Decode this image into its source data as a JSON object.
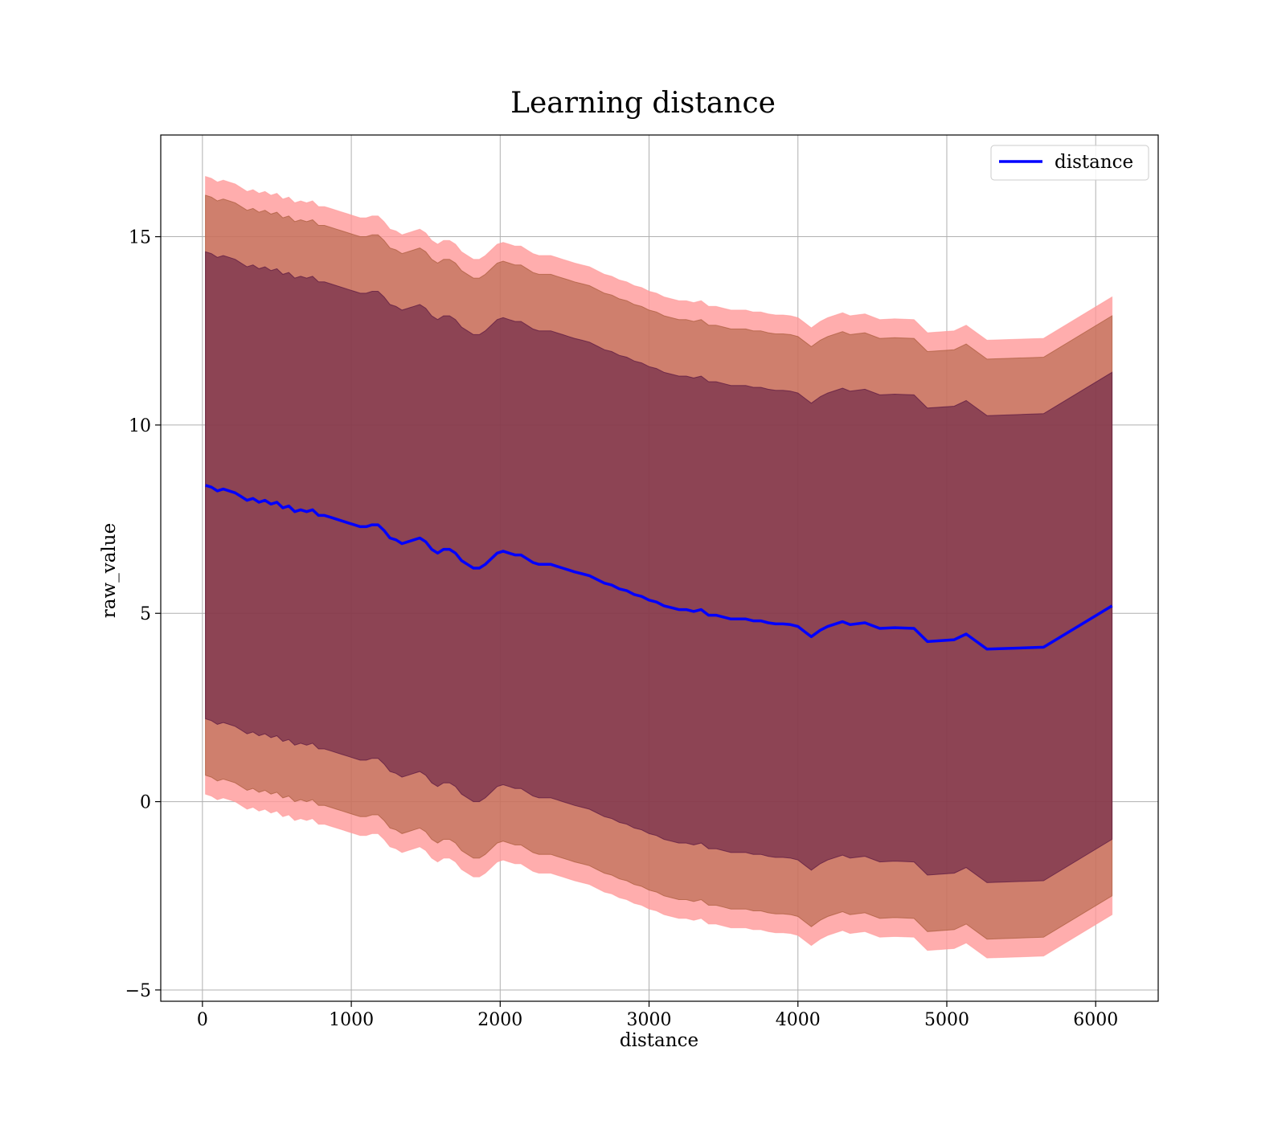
{
  "chart_data": {
    "type": "line",
    "title": "Learning distance",
    "xlabel": "distance",
    "ylabel": "raw_value",
    "xlim": [
      -280,
      6420
    ],
    "ylim": [
      -5.3,
      17.7
    ],
    "xticks": [
      0,
      1000,
      2000,
      3000,
      4000,
      5000,
      6000
    ],
    "yticks": [
      -5,
      0,
      5,
      10,
      15
    ],
    "ytick_labels": [
      "−5",
      "0",
      "5",
      "10",
      "15"
    ],
    "grid": true,
    "legend": {
      "placement": "top-right",
      "entries": [
        "distance"
      ]
    },
    "colors": {
      "line": "#0000ff",
      "band_outer": "#ff9999",
      "band_middle": "#a0522d",
      "band_inner": "#4b0a3c"
    },
    "band_offsets": [
      6.2,
      7.7,
      8.2
    ],
    "series": [
      {
        "name": "distance",
        "x": [
          20,
          60,
          100,
          140,
          180,
          220,
          260,
          300,
          340,
          380,
          420,
          460,
          500,
          540,
          580,
          620,
          660,
          700,
          740,
          780,
          820,
          860,
          900,
          940,
          980,
          1020,
          1060,
          1100,
          1140,
          1180,
          1220,
          1260,
          1300,
          1340,
          1380,
          1420,
          1460,
          1500,
          1540,
          1580,
          1620,
          1660,
          1700,
          1740,
          1780,
          1820,
          1860,
          1900,
          1940,
          1980,
          2020,
          2060,
          2100,
          2140,
          2180,
          2220,
          2260,
          2300,
          2340,
          2380,
          2420,
          2460,
          2500,
          2550,
          2600,
          2650,
          2700,
          2750,
          2800,
          2850,
          2900,
          2950,
          3000,
          3050,
          3100,
          3150,
          3200,
          3250,
          3300,
          3350,
          3400,
          3450,
          3500,
          3550,
          3600,
          3650,
          3700,
          3750,
          3800,
          3850,
          3900,
          3950,
          4000,
          4050,
          4090,
          4150,
          4200,
          4300,
          4350,
          4450,
          4550,
          4650,
          4780,
          4870,
          5050,
          5130,
          5270,
          5650,
          6110
        ],
        "values": [
          8.4,
          8.35,
          8.25,
          8.3,
          8.25,
          8.2,
          8.1,
          8.0,
          8.05,
          7.95,
          8.0,
          7.9,
          7.95,
          7.8,
          7.85,
          7.7,
          7.75,
          7.7,
          7.75,
          7.6,
          7.6,
          7.55,
          7.5,
          7.45,
          7.4,
          7.35,
          7.3,
          7.3,
          7.35,
          7.35,
          7.2,
          7.0,
          6.95,
          6.85,
          6.9,
          6.95,
          7.0,
          6.9,
          6.7,
          6.6,
          6.7,
          6.7,
          6.6,
          6.4,
          6.3,
          6.2,
          6.2,
          6.3,
          6.45,
          6.6,
          6.65,
          6.6,
          6.55,
          6.55,
          6.45,
          6.35,
          6.3,
          6.3,
          6.3,
          6.25,
          6.2,
          6.15,
          6.1,
          6.05,
          6.0,
          5.9,
          5.8,
          5.75,
          5.65,
          5.6,
          5.5,
          5.45,
          5.35,
          5.3,
          5.2,
          5.15,
          5.1,
          5.1,
          5.05,
          5.1,
          4.95,
          4.95,
          4.9,
          4.85,
          4.85,
          4.85,
          4.8,
          4.8,
          4.75,
          4.72,
          4.72,
          4.7,
          4.65,
          4.5,
          4.38,
          4.55,
          4.65,
          4.78,
          4.7,
          4.75,
          4.6,
          4.62,
          4.6,
          4.25,
          4.3,
          4.45,
          4.05,
          4.1,
          5.2
        ]
      }
    ]
  }
}
